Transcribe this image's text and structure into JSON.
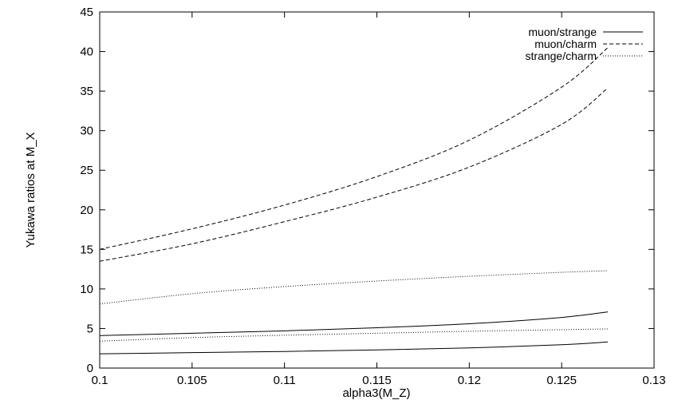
{
  "chart_data": {
    "type": "line",
    "title": "",
    "xlabel": "alpha3(M_Z)",
    "ylabel": "Yukawa ratios at M_X",
    "xlim": [
      0.1,
      0.13
    ],
    "ylim": [
      0,
      45
    ],
    "xticks": [
      0.1,
      0.105,
      0.11,
      0.115,
      0.12,
      0.125,
      0.13
    ],
    "xtick_labels": [
      "0.1",
      "0.105",
      "0.11",
      "0.115",
      "0.12",
      "0.125",
      "0.13"
    ],
    "yticks": [
      0,
      5,
      10,
      15,
      20,
      25,
      30,
      35,
      40,
      45
    ],
    "ytick_labels": [
      "0",
      "5",
      "10",
      "15",
      "20",
      "25",
      "30",
      "35",
      "40",
      "45"
    ],
    "grid": false,
    "legend": {
      "placement": "top-right"
    },
    "series": [
      {
        "name": "muon/strange",
        "style": "solid",
        "color": "#000000",
        "curves": [
          {
            "x": [
              0.1,
              0.105,
              0.11,
              0.115,
              0.12,
              0.125,
              0.1275
            ],
            "y": [
              4.1,
              4.4,
              4.7,
              5.1,
              5.6,
              6.4,
              7.1
            ]
          },
          {
            "x": [
              0.1,
              0.105,
              0.11,
              0.115,
              0.12,
              0.125,
              0.1275
            ],
            "y": [
              1.8,
              1.95,
              2.1,
              2.3,
              2.55,
              2.95,
              3.3
            ]
          }
        ]
      },
      {
        "name": "muon/charm",
        "style": "dashed",
        "color": "#000000",
        "curves": [
          {
            "x": [
              0.1,
              0.105,
              0.11,
              0.115,
              0.12,
              0.125,
              0.1275
            ],
            "y": [
              15.0,
              17.6,
              20.6,
              24.2,
              28.8,
              35.5,
              40.5
            ]
          },
          {
            "x": [
              0.1,
              0.105,
              0.11,
              0.115,
              0.12,
              0.125,
              0.1275
            ],
            "y": [
              13.5,
              15.7,
              18.5,
              21.6,
              25.4,
              30.8,
              35.4
            ]
          }
        ]
      },
      {
        "name": "strange/charm",
        "style": "dotted",
        "color": "#000000",
        "curves": [
          {
            "x": [
              0.1,
              0.105,
              0.11,
              0.115,
              0.12,
              0.125,
              0.1275
            ],
            "y": [
              8.1,
              9.4,
              10.3,
              11.0,
              11.6,
              12.1,
              12.3
            ]
          },
          {
            "x": [
              0.1,
              0.105,
              0.11,
              0.115,
              0.12,
              0.125,
              0.1275
            ],
            "y": [
              3.4,
              3.85,
              4.15,
              4.4,
              4.65,
              4.85,
              4.95
            ]
          }
        ]
      }
    ]
  }
}
